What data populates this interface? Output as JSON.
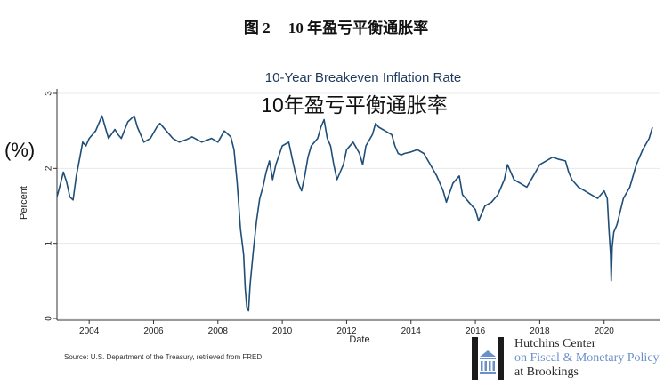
{
  "figure_caption": {
    "number": "图 2",
    "title": "10 年盈亏平衡通胀率"
  },
  "chart_data": {
    "type": "line",
    "title": "10-Year Breakeven Inflation Rate",
    "overlay_title": "10年盈亏平衡通胀率",
    "xlabel": "Date",
    "ylabel": "Percent",
    "ylabel_overlay": "(%)",
    "xlim": [
      2003.0,
      2021.75
    ],
    "ylim": [
      0,
      3
    ],
    "xticks": [
      "2004",
      "2006",
      "2008",
      "2010",
      "2012",
      "2014",
      "2016",
      "2018",
      "2020"
    ],
    "xtick_values": [
      2004,
      2006,
      2008,
      2010,
      2012,
      2014,
      2016,
      2018,
      2020
    ],
    "yticks": [
      "0",
      "1",
      "2",
      "3"
    ],
    "ytick_values": [
      0,
      1,
      2,
      3
    ],
    "grid": true,
    "line_color": "#1f4e79",
    "series": [
      {
        "x": [
          2003.0,
          2003.1,
          2003.2,
          2003.3,
          2003.4,
          2003.5,
          2003.6,
          2003.7,
          2003.8,
          2003.9,
          2004.0,
          2004.2,
          2004.4,
          2004.5,
          2004.6,
          2004.8,
          2004.9,
          2005.0,
          2005.2,
          2005.4,
          2005.5,
          2005.7,
          2005.9,
          2006.1,
          2006.2,
          2006.4,
          2006.6,
          2006.8,
          2007.0,
          2007.2,
          2007.5,
          2007.8,
          2008.0,
          2008.2,
          2008.4,
          2008.5,
          2008.6,
          2008.7,
          2008.8,
          2008.85,
          2008.9,
          2008.95,
          2009.0,
          2009.1,
          2009.2,
          2009.3,
          2009.4,
          2009.5,
          2009.6,
          2009.7,
          2009.8,
          2010.0,
          2010.2,
          2010.4,
          2010.5,
          2010.6,
          2010.7,
          2010.8,
          2010.9,
          2011.0,
          2011.1,
          2011.2,
          2011.3,
          2011.4,
          2011.5,
          2011.6,
          2011.7,
          2011.8,
          2011.9,
          2012.0,
          2012.2,
          2012.4,
          2012.5,
          2012.6,
          2012.8,
          2012.9,
          2013.0,
          2013.2,
          2013.4,
          2013.5,
          2013.6,
          2013.7,
          2013.8,
          2014.0,
          2014.2,
          2014.4,
          2014.6,
          2014.8,
          2015.0,
          2015.1,
          2015.3,
          2015.5,
          2015.6,
          2015.8,
          2016.0,
          2016.1,
          2016.3,
          2016.5,
          2016.7,
          2016.9,
          2017.0,
          2017.2,
          2017.4,
          2017.6,
          2017.8,
          2018.0,
          2018.2,
          2018.4,
          2018.6,
          2018.8,
          2018.9,
          2019.0,
          2019.2,
          2019.4,
          2019.6,
          2019.8,
          2020.0,
          2020.1,
          2020.15,
          2020.2,
          2020.22,
          2020.25,
          2020.3,
          2020.4,
          2020.6,
          2020.8,
          2021.0,
          2021.2,
          2021.4,
          2021.5
        ],
        "values": [
          1.62,
          1.78,
          1.95,
          1.82,
          1.62,
          1.58,
          1.9,
          2.12,
          2.35,
          2.3,
          2.4,
          2.5,
          2.7,
          2.55,
          2.4,
          2.52,
          2.45,
          2.4,
          2.62,
          2.7,
          2.55,
          2.35,
          2.4,
          2.55,
          2.6,
          2.5,
          2.4,
          2.35,
          2.38,
          2.42,
          2.35,
          2.4,
          2.35,
          2.5,
          2.42,
          2.25,
          1.8,
          1.2,
          0.85,
          0.4,
          0.15,
          0.1,
          0.45,
          0.9,
          1.3,
          1.6,
          1.75,
          1.95,
          2.1,
          1.85,
          2.05,
          2.3,
          2.35,
          1.95,
          1.8,
          1.7,
          1.9,
          2.15,
          2.3,
          2.35,
          2.4,
          2.55,
          2.65,
          2.4,
          2.3,
          2.05,
          1.85,
          1.95,
          2.05,
          2.25,
          2.35,
          2.2,
          2.05,
          2.3,
          2.45,
          2.6,
          2.55,
          2.5,
          2.45,
          2.3,
          2.2,
          2.18,
          2.2,
          2.22,
          2.25,
          2.2,
          2.05,
          1.9,
          1.7,
          1.55,
          1.8,
          1.9,
          1.65,
          1.55,
          1.45,
          1.3,
          1.5,
          1.55,
          1.65,
          1.85,
          2.05,
          1.85,
          1.8,
          1.75,
          1.9,
          2.05,
          2.1,
          2.15,
          2.12,
          2.1,
          1.95,
          1.85,
          1.75,
          1.7,
          1.65,
          1.6,
          1.7,
          1.6,
          1.2,
          0.85,
          0.5,
          0.95,
          1.15,
          1.25,
          1.6,
          1.75,
          2.05,
          2.25,
          2.4,
          2.55
        ]
      }
    ],
    "source": "Source: U.S. Department of the Treasury, retrieved from FRED"
  },
  "logo": {
    "line1": "Hutchins Center",
    "line2": "on Fiscal & Monetary Policy",
    "line3": "at Brookings",
    "name_color": "#2a2a2a",
    "accent_color": "#6b8fc8"
  }
}
